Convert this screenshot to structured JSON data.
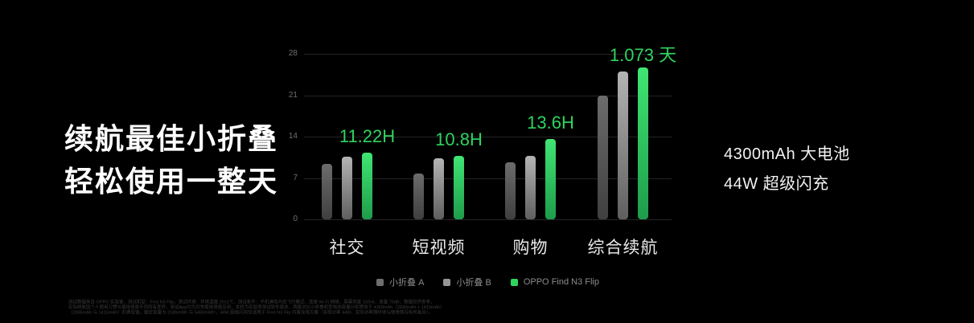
{
  "slide": {
    "background": "#000000",
    "headline": {
      "line1": "续航最佳小折叠",
      "line2": "轻松使用一整天"
    },
    "highlights": {
      "battery": "4300mAh 大电池",
      "charging": "44W 超级闪充"
    },
    "footnote_lines": [
      "测试数据来自 OPPO 实验室，测试机型：Find N3 Flip，测试环境：环境温度 25±1℃，测试条件：手机满电开启飞行模式，连接 Wi-Fi 网络，屏幕亮度 150nit，音量 70dB，数据仅供参考，",
      "实际续航因个人使用习惯与使用场景不同而有差异，测试App均为日常使用场景应用，本机为实验室测试软件版本，两款对比小折叠机型电池容量分别等效于 4300mAh（2890mAh + 1410mAh）",
      "（2885mAh 与 1415mAh）的典型值，额定容量为 3186mWh 与 5480mWh'，44W 超级闪充仅适用于 Find N3 Flip 内置充电方案（充电功率 44W，实际功率随环境与使用情况有所差异）。"
    ]
  },
  "chart_data": {
    "type": "bar",
    "title": "",
    "categories": [
      "社交",
      "短视频",
      "购物",
      "综合续航"
    ],
    "series": [
      {
        "name": "小折叠 A",
        "values": [
          9.4,
          7.7,
          9.7,
          21.0
        ],
        "color_top": "#6c6c6c",
        "color_bottom": "#3f3f3f",
        "legend_color": "#6e6e6e"
      },
      {
        "name": "小折叠 B",
        "values": [
          10.6,
          10.3,
          10.7,
          25.0
        ],
        "color_top": "#b4b4b4",
        "color_bottom": "#5f5f5f",
        "legend_color": "#969696"
      },
      {
        "name": "OPPO Find N3 Flip",
        "values": [
          11.22,
          10.8,
          13.6,
          25.75
        ],
        "color_top": "#40e673",
        "color_bottom": "#1e9c4a",
        "legend_color": "#2fd45f"
      }
    ],
    "highlight_labels": [
      "11.22H",
      "10.8H",
      "13.6H",
      "1.073 天"
    ],
    "highlight_series_index": 2,
    "yticks": [
      0,
      7,
      14,
      21,
      28
    ],
    "ylim": [
      0,
      28
    ],
    "xlabel": "",
    "ylabel": "",
    "grid": true,
    "legend_position": "bottom",
    "accent_color": "#2fd45f",
    "tick_color": "#6f6f6f",
    "gridline_color": "#242424",
    "category_color": "#e9e9e9"
  }
}
